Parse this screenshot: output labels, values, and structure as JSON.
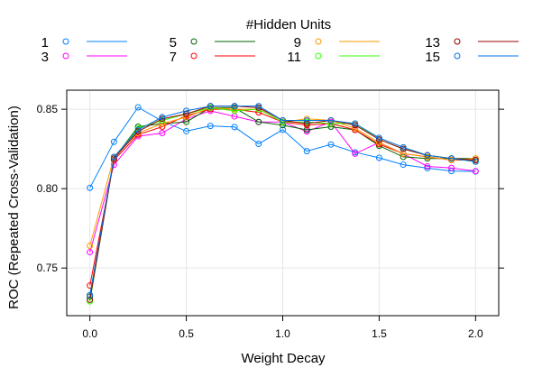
{
  "chart_data": {
    "type": "line",
    "title": "",
    "legend_title": "#Hidden Units",
    "legend_placement": "top",
    "xlabel": "Weight Decay",
    "ylabel": "ROC (Repeated Cross-Validation)",
    "xlim": [
      -0.12,
      2.12
    ],
    "ylim": [
      0.72,
      0.862
    ],
    "x_ticks": [
      0.0,
      0.5,
      1.0,
      1.5,
      2.0
    ],
    "x_tick_labels": [
      "0.0",
      "0.5",
      "1.0",
      "1.5",
      "2.0"
    ],
    "y_ticks": [
      0.75,
      0.8,
      0.85
    ],
    "y_tick_labels": [
      "0.75",
      "0.80",
      "0.85"
    ],
    "grid": true,
    "x": [
      0,
      0.125,
      0.25,
      0.375,
      0.5,
      0.625,
      0.75,
      0.875,
      1.0,
      1.125,
      1.25,
      1.375,
      1.5,
      1.625,
      1.75,
      1.875,
      2.0
    ],
    "series": [
      {
        "name": "1",
        "color": "#0080ff",
        "values": [
          0.8005,
          0.8295,
          0.8512,
          0.8425,
          0.8362,
          0.8395,
          0.8388,
          0.8282,
          0.8371,
          0.8236,
          0.8278,
          0.8229,
          0.8194,
          0.8151,
          0.8129,
          0.8111,
          0.8108
        ]
      },
      {
        "name": "3",
        "color": "#ff00ff",
        "values": [
          0.76,
          0.815,
          0.833,
          0.835,
          0.844,
          0.849,
          0.8455,
          0.842,
          0.842,
          0.836,
          0.842,
          0.822,
          0.829,
          0.822,
          0.814,
          0.813,
          0.811
        ]
      },
      {
        "name": "5",
        "color": "#006400",
        "values": [
          0.732,
          0.819,
          0.839,
          0.841,
          0.842,
          0.851,
          0.851,
          0.842,
          0.84,
          0.837,
          0.839,
          0.837,
          0.827,
          0.82,
          0.819,
          0.819,
          0.819
        ]
      },
      {
        "name": "7",
        "color": "#ff0000",
        "values": [
          0.739,
          0.818,
          0.834,
          0.839,
          0.846,
          0.85,
          0.85,
          0.848,
          0.842,
          0.84,
          0.841,
          0.837,
          0.828,
          0.822,
          0.82,
          0.818,
          0.818
        ]
      },
      {
        "name": "9",
        "color": "#ff9900",
        "values": [
          0.764,
          0.82,
          0.835,
          0.841,
          0.845,
          0.851,
          0.85,
          0.85,
          0.842,
          0.844,
          0.843,
          0.838,
          0.829,
          0.822,
          0.82,
          0.818,
          0.819
        ]
      },
      {
        "name": "11",
        "color": "#33ff00",
        "values": [
          0.729,
          0.819,
          0.838,
          0.843,
          0.847,
          0.851,
          0.849,
          0.85,
          0.842,
          0.842,
          0.841,
          0.841,
          0.831,
          0.825,
          0.821,
          0.819,
          0.817
        ]
      },
      {
        "name": "13",
        "color": "#990000",
        "values": [
          0.73,
          0.819,
          0.836,
          0.844,
          0.847,
          0.852,
          0.852,
          0.851,
          0.843,
          0.841,
          0.843,
          0.84,
          0.831,
          0.825,
          0.821,
          0.819,
          0.818
        ]
      },
      {
        "name": "15",
        "color": "#0070e0",
        "values": [
          0.733,
          0.82,
          0.837,
          0.845,
          0.849,
          0.852,
          0.852,
          0.852,
          0.843,
          0.843,
          0.843,
          0.841,
          0.832,
          0.826,
          0.821,
          0.819,
          0.817
        ]
      }
    ]
  }
}
